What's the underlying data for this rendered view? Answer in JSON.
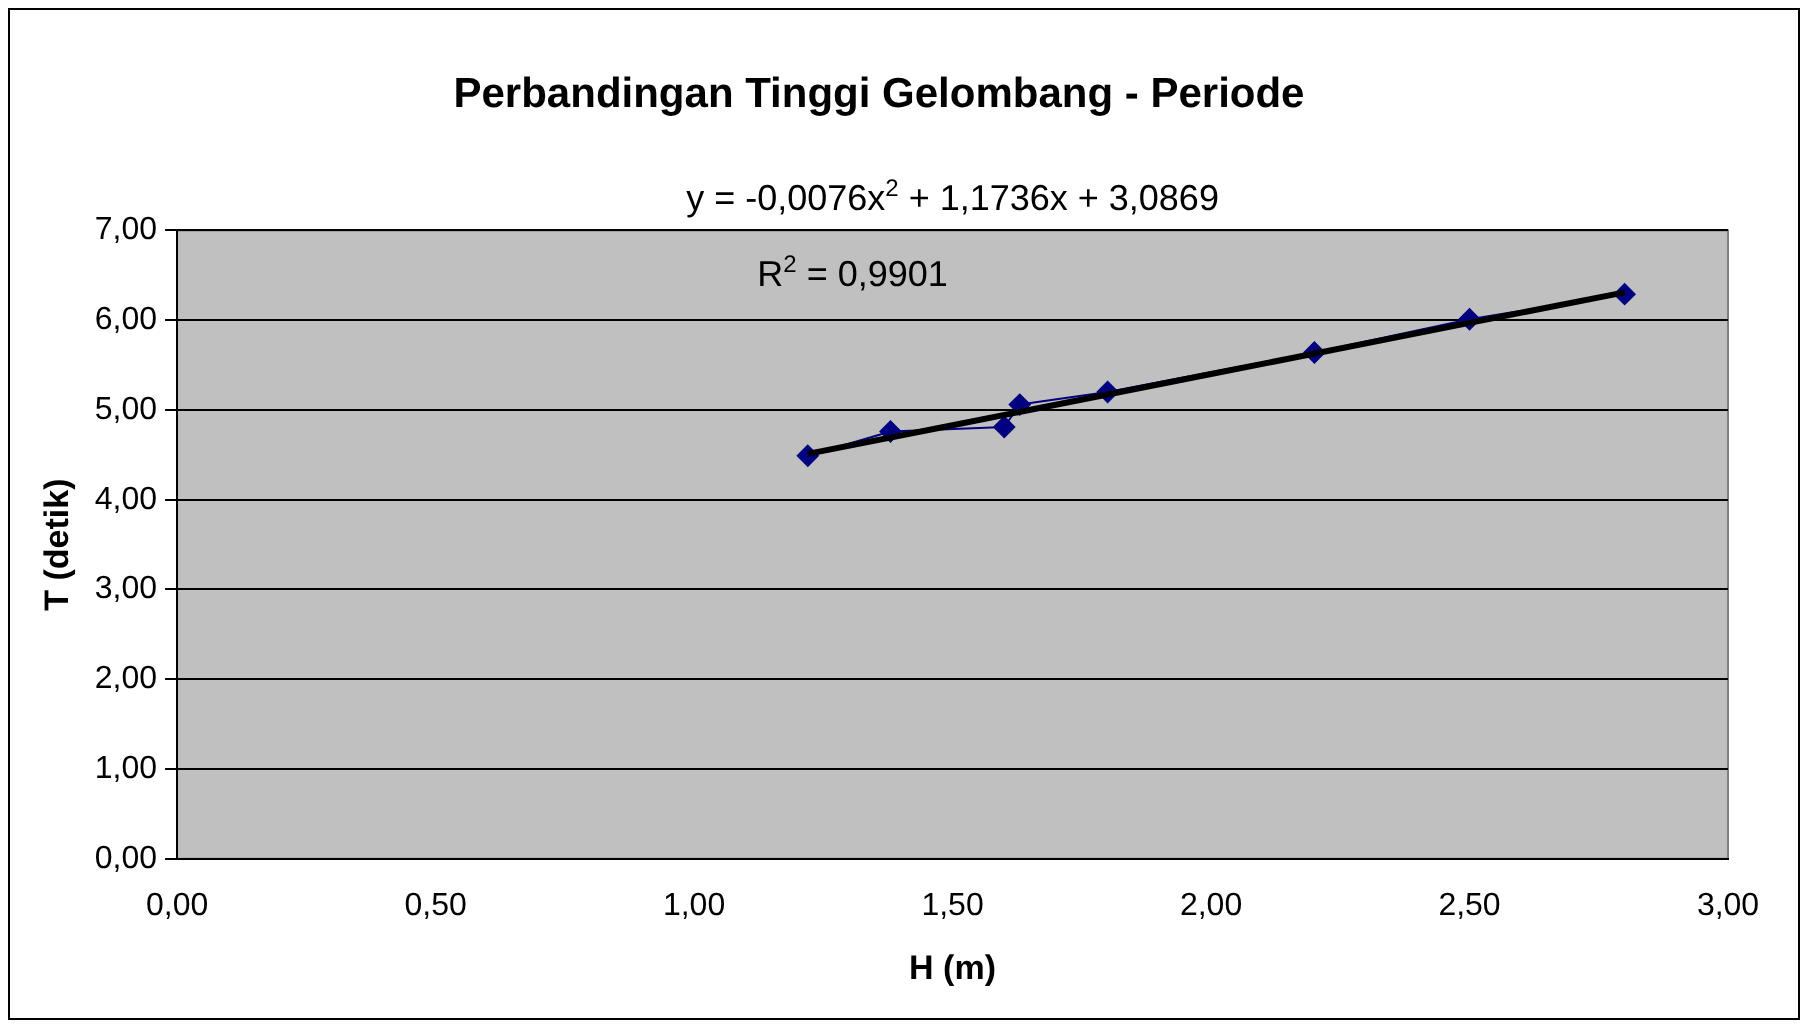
{
  "chart_data": {
    "type": "scatter",
    "title": "Perbandingan Tinggi Gelombang - Periode",
    "xlabel": "H (m)",
    "ylabel": "T (detik)",
    "annotations": [
      "y = -0,0076x$^{2}$ + 1,1736x + 3,0869",
      "R$^{2}$ = 0,9901"
    ],
    "series": [
      {
        "type": "line",
        "color": "#000080",
        "marker": "diamond",
        "x": [
          1.22,
          1.38,
          1.6,
          1.63,
          1.8,
          2.2,
          2.5,
          2.8
        ],
        "values": [
          4.49,
          4.76,
          4.81,
          5.06,
          5.2,
          5.64,
          6.01,
          6.29
        ]
      },
      {
        "type": "line",
        "color": "#000000",
        "marker": "none",
        "x": [
          1.22,
          1.5,
          2.0,
          2.5,
          2.8
        ],
        "values": [
          4.51,
          4.83,
          5.4,
          5.97,
          6.31
        ]
      }
    ],
    "xlim": [
      0,
      3
    ],
    "xticks": [
      {
        "value": 0,
        "label": "0,00"
      },
      {
        "value": 0.5,
        "label": "0,50"
      },
      {
        "value": 1,
        "label": "1,00"
      },
      {
        "value": 1.5,
        "label": "1,50"
      },
      {
        "value": 2,
        "label": "2,00"
      },
      {
        "value": 2.5,
        "label": "2,50"
      },
      {
        "value": 3,
        "label": "3,00"
      }
    ],
    "ylim": [
      0,
      7
    ],
    "yticks": [
      {
        "value": 0,
        "label": "0,00"
      },
      {
        "value": 1,
        "label": "1,00"
      },
      {
        "value": 2,
        "label": "2,00"
      },
      {
        "value": 3,
        "label": "3,00"
      },
      {
        "value": 4,
        "label": "4,00"
      },
      {
        "value": 5,
        "label": "5,00"
      },
      {
        "value": 6,
        "label": "6,00"
      },
      {
        "value": 7,
        "label": "7,00"
      }
    ],
    "grid": "y",
    "legend": false
  }
}
